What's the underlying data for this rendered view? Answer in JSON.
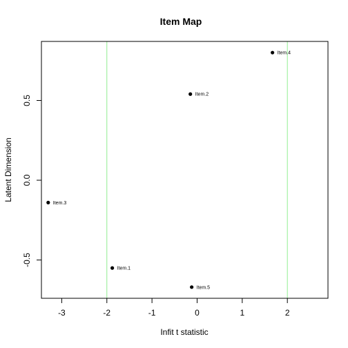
{
  "chart_data": {
    "type": "scatter",
    "title": "Item Map",
    "xlabel": "Infit t statistic",
    "ylabel": "Latent Dimension",
    "xlim": [
      -3.45,
      2.9
    ],
    "ylim": [
      -0.74,
      0.87
    ],
    "x_ticks": [
      -3,
      -2,
      -1,
      0,
      1,
      2
    ],
    "x_tick_labels": [
      "-3",
      "-2",
      "-1",
      "0",
      "1",
      "2"
    ],
    "y_ticks": [
      -0.5,
      0.0,
      0.5
    ],
    "y_tick_labels": [
      "-0.5",
      "0.0",
      "0.5"
    ],
    "reference_lines_x": [
      -2,
      2
    ],
    "reference_line_color": "#90ee90",
    "point_color": "#000000",
    "grid": false,
    "points": [
      {
        "label": "Item.1",
        "x": -1.88,
        "y": -0.55
      },
      {
        "label": "Item.2",
        "x": -0.15,
        "y": 0.54
      },
      {
        "label": "Item.3",
        "x": -3.3,
        "y": -0.14
      },
      {
        "label": "Item.4",
        "x": 1.67,
        "y": 0.8
      },
      {
        "label": "Item.5",
        "x": -0.12,
        "y": -0.67
      }
    ]
  }
}
